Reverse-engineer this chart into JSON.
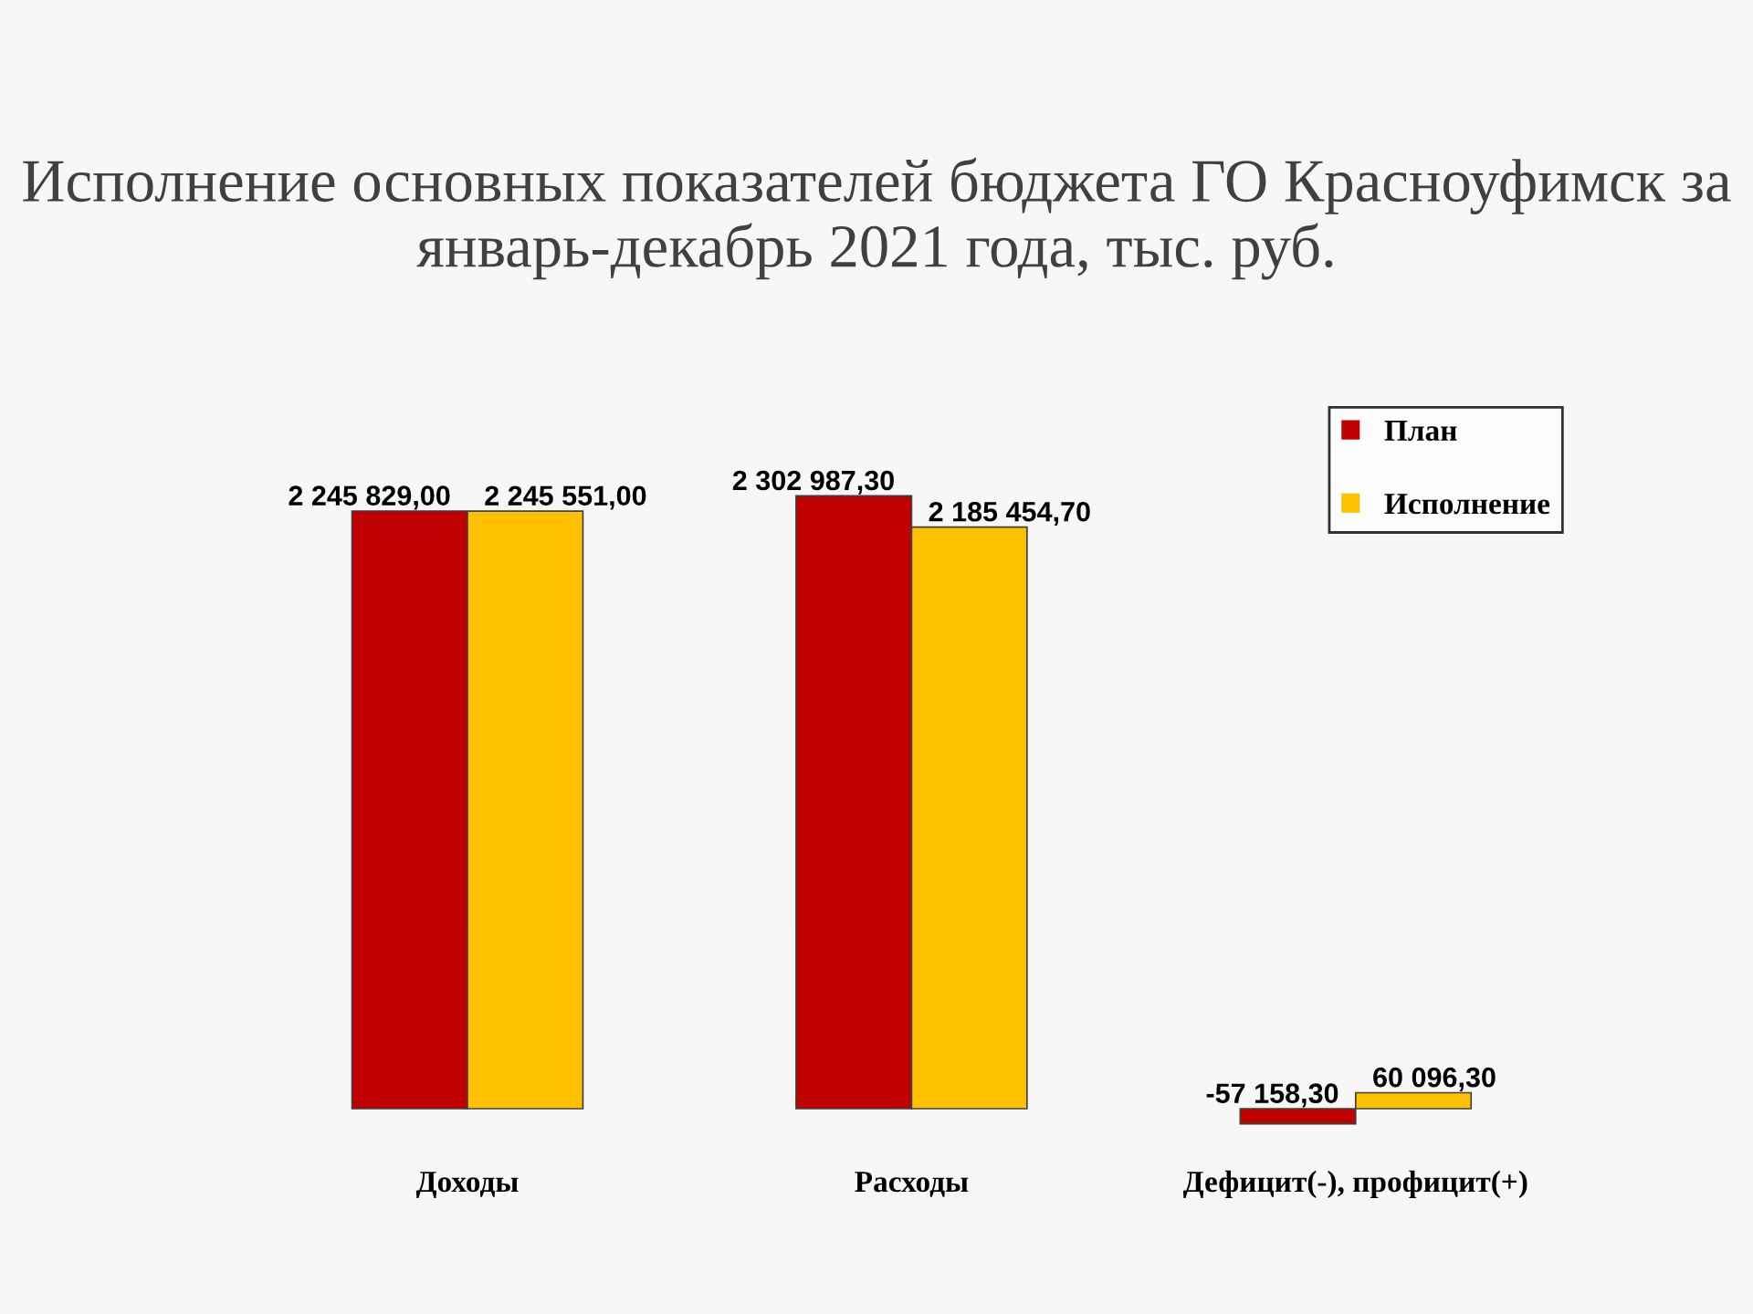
{
  "chart_data": {
    "type": "bar",
    "title": "Исполнение основных показателей бюджета ГО Красноуфимск за январь-декабрь 2021 года, тыс. руб.",
    "categories": [
      "Доходы",
      "Расходы",
      "Дефицит(-), профицит(+)"
    ],
    "series": [
      {
        "name": "План",
        "color": "#c00000",
        "values": [
          2245829.0,
          2302987.3,
          -57158.3
        ],
        "value_labels": [
          "2 245 829,00",
          "2 302 987,30",
          "-57 158,30"
        ]
      },
      {
        "name": "Исполнение",
        "color": "#ffc000",
        "values": [
          2245551.0,
          2185454.7,
          60096.3
        ],
        "value_labels": [
          "2 245 551,00",
          "2 185 454,70",
          "60 096,30"
        ]
      }
    ],
    "legend": "top right",
    "grid": false
  }
}
